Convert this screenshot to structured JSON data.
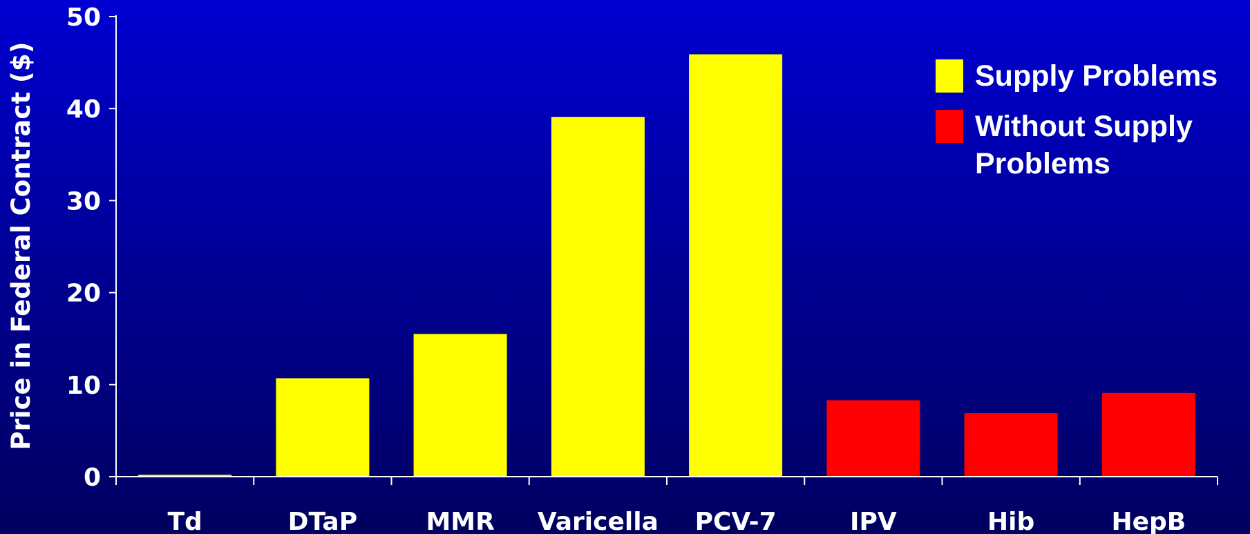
{
  "chart_data": {
    "type": "bar",
    "title": "",
    "xlabel": "",
    "ylabel": "Price in Federal Contract ($)",
    "ylim": [
      0,
      50
    ],
    "yticks": [
      0,
      10,
      20,
      30,
      40,
      50
    ],
    "categories": [
      "Td",
      "DTaP",
      "MMR",
      "Varicella",
      "PCV-7",
      "IPV",
      "Hib",
      "HepB"
    ],
    "values": [
      0.2,
      10.7,
      15.5,
      39.1,
      45.9,
      8.3,
      6.9,
      9.1
    ],
    "bar_group": [
      "supply",
      "supply",
      "supply",
      "supply",
      "supply",
      "without",
      "without",
      "without"
    ],
    "series": [
      {
        "key": "supply",
        "name": "Supply Problems",
        "color": "#ffff00"
      },
      {
        "key": "without",
        "name": "Without Supply Problems",
        "color": "#ff0000"
      }
    ],
    "legend_position": "top-right",
    "grid": false
  },
  "colors": {
    "background_top": "#0000d2",
    "background_bottom": "#000060",
    "axis": "#ffffff",
    "text": "#ffffff"
  }
}
